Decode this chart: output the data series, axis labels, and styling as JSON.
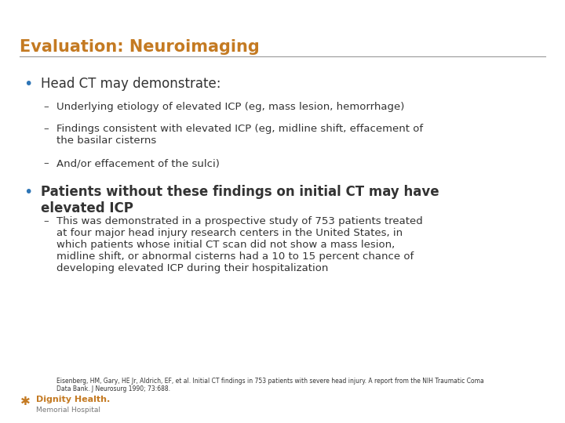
{
  "title": "Evaluation: Neuroimaging",
  "title_color": "#C47A22",
  "title_fontsize": 15,
  "bg_color": "#FFFFFF",
  "line_color": "#999999",
  "bullet_color": "#2E75B6",
  "bullet1_text": "Head CT may demonstrate:",
  "bullet1_fontsize": 12,
  "sub1a": "Underlying etiology of elevated ICP (eg, mass lesion, hemorrhage)",
  "sub1b": "Findings consistent with elevated ICP (eg, midline shift, effacement of\nthe basilar cisterns",
  "sub1c": "And/or effacement of the sulci)",
  "sub_fontsize": 9.5,
  "bullet2_text": "Patients without these findings on initial CT may have\nelevated ICP",
  "bullet2_fontsize": 12,
  "sub2a": "This was demonstrated in a prospective study of 753 patients treated\nat four major head injury research centers in the United States, in\nwhich patients whose initial CT scan did not show a mass lesion,\nmidline shift, or abnormal cisterns had a 10 to 15 percent chance of\ndeveloping elevated ICP during their hospitalization",
  "footnote": "Eisenberg, HM, Gary, HE Jr, Aldrich, EF, et al. Initial CT findings in 753 patients with severe head injury. A report from the NIH Traumatic Coma\nData Bank. J Neurosurg 1990; 73:688.",
  "footnote_fontsize": 5.5,
  "dash_color": "#444444",
  "text_color": "#333333",
  "logo_main": "Dignity Health.",
  "logo_sub": "Memorial Hospital",
  "logo_color": "#C47A22",
  "logo_sub_color": "#777777"
}
